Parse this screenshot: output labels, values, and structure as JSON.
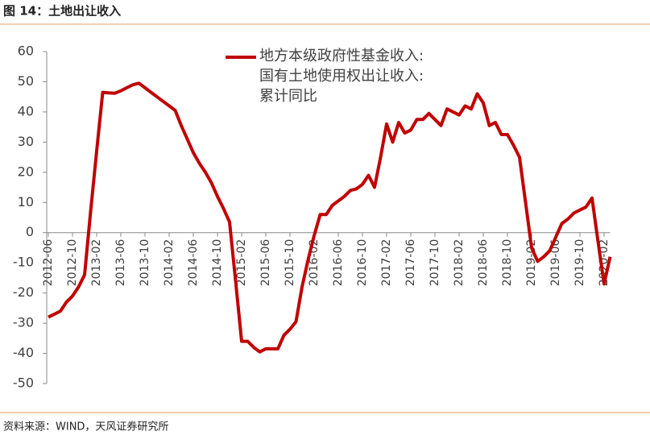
{
  "chart_data": {
    "type": "line",
    "title": "图 14：土地出让收入",
    "source": "资料来源：WIND，天风证券研究所",
    "categories": [
      "2012-06",
      null,
      null,
      null,
      "2012-10",
      null,
      null,
      null,
      "2013-02",
      null,
      null,
      null,
      "2013-06",
      null,
      null,
      null,
      "2013-10",
      null,
      null,
      null,
      "2014-02",
      null,
      null,
      null,
      "2014-06",
      null,
      null,
      null,
      "2014-10",
      null,
      null,
      null,
      "2015-02",
      null,
      null,
      null,
      "2015-06",
      null,
      null,
      null,
      "2015-10",
      null,
      null,
      null,
      "2016-02",
      null,
      null,
      null,
      "2016-06",
      null,
      null,
      null,
      "2016-10",
      null,
      null,
      null,
      "2017-02",
      null,
      null,
      null,
      "2017-06",
      null,
      null,
      null,
      "2017-10",
      null,
      null,
      null,
      "2018-02",
      null,
      null,
      null,
      "2018-06",
      null,
      null,
      null,
      "2018-10",
      null,
      null,
      null,
      "2019-02",
      null,
      null,
      null,
      "2019-06",
      null,
      null,
      null,
      "2019-10",
      null,
      null,
      null,
      "2020-02",
      null
    ],
    "series": [
      {
        "name": "地方本级政府性基金收入:国有土地使用权出让收入:累计同比",
        "color": "#c00000",
        "values": [
          -28,
          -27,
          -26,
          -23,
          -21,
          -18,
          -14,
          7,
          27,
          46.5,
          46.3,
          46.2,
          47,
          48,
          49,
          49.5,
          48,
          46.5,
          45,
          43.5,
          42,
          40.5,
          35.5,
          31,
          26.5,
          23,
          20,
          16.5,
          12,
          8,
          3.5,
          -16,
          -36,
          -36,
          -38,
          -39.5,
          -38.5,
          -38.5,
          -38.5,
          -34,
          -32,
          -29.5,
          -18,
          -9,
          -1,
          6,
          6,
          9,
          10.5,
          12,
          14,
          14.5,
          16,
          19,
          15,
          25,
          36,
          30,
          36.5,
          33,
          34,
          37.5,
          37.5,
          39.5,
          37.5,
          35.5,
          41,
          40,
          39,
          42,
          41,
          46,
          43,
          35.5,
          36.5,
          32.5,
          32.5,
          29,
          25,
          10,
          -5,
          -9.5,
          -8,
          -6,
          -1.5,
          3,
          4.5,
          6.5,
          7.5,
          8.5,
          11.5,
          -3,
          -17,
          -8
        ]
      }
    ],
    "ylim": [
      -50,
      60
    ],
    "yticks": [
      -50,
      -40,
      -30,
      -20,
      -10,
      0,
      10,
      20,
      30,
      40,
      50,
      60
    ],
    "grid": false,
    "legend": "top"
  }
}
